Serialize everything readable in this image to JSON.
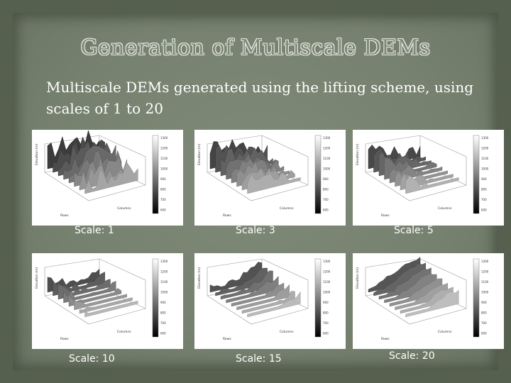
{
  "slide": {
    "title": "Generation of Multiscale DEMs",
    "subtitle": "Multiscale DEMs generated using the lifting scheme, using scales of 1 to 20"
  },
  "panels": [
    {
      "caption": "Scale: 1",
      "roughness": 1.0
    },
    {
      "caption": "Scale: 3",
      "roughness": 0.75
    },
    {
      "caption": "Scale: 5",
      "roughness": 0.6
    },
    {
      "caption": "Scale: 10",
      "roughness": 0.4
    },
    {
      "caption": "Scale: 15",
      "roughness": 0.28
    },
    {
      "caption": "Scale: 20",
      "roughness": 0.18
    }
  ],
  "axis_labels": {
    "x": "Rows",
    "y": "Columns",
    "z": "Elevation (m)"
  },
  "colorbar_ticks": [
    "1300",
    "1200",
    "1100",
    "1000",
    "900",
    "800",
    "700",
    "600"
  ]
}
